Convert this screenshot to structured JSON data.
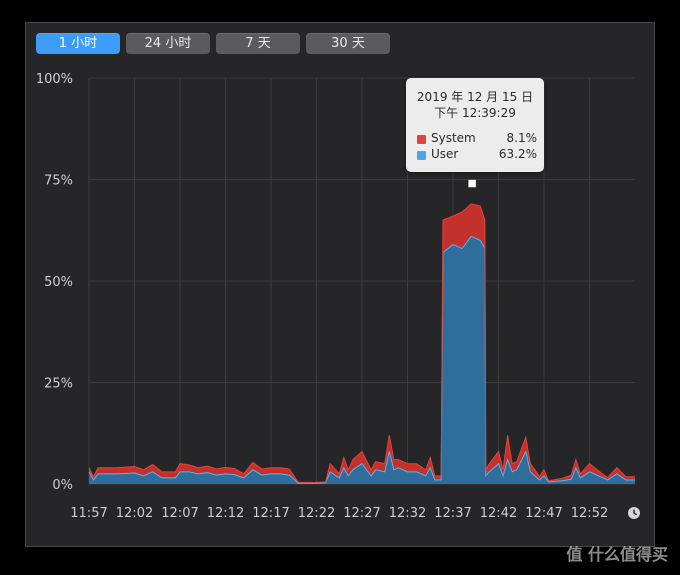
{
  "tabs": [
    {
      "label": "1 小时",
      "active": true
    },
    {
      "label": "24 小时",
      "active": false
    },
    {
      "label": "7 天",
      "active": false
    },
    {
      "label": "30 天",
      "active": false
    }
  ],
  "tooltip": {
    "date": "2019 年 12 月 15 日",
    "time": "下午 12:39:29",
    "rows": [
      {
        "name": "System",
        "value": "8.1%",
        "color": "#e0463c"
      },
      {
        "name": "User",
        "value": "63.2%",
        "color": "#4aa8e8"
      }
    ]
  },
  "clock_icon": "clock-icon",
  "watermark": "值 什么值得买",
  "colors": {
    "system": "#c4302b",
    "user": "#2f6d9a",
    "user_line": "#5fb2ee",
    "active_tab": "#3d9cf5"
  },
  "chart_data": {
    "type": "area",
    "title": "",
    "xlabel": "",
    "ylabel": "",
    "ylim": [
      0,
      100
    ],
    "y_ticks": [
      "100%",
      "75%",
      "50%",
      "25%",
      "0%"
    ],
    "x_ticks": [
      "11:57",
      "12:02",
      "12:07",
      "12:12",
      "12:17",
      "12:22",
      "12:27",
      "12:32",
      "12:37",
      "12:42",
      "12:47",
      "12:52"
    ],
    "x_range_minutes": [
      0,
      60
    ],
    "stacked": true,
    "series": [
      {
        "name": "User",
        "points": [
          [
            0,
            3
          ],
          [
            0.5,
            1
          ],
          [
            1,
            2.5
          ],
          [
            3,
            2.5
          ],
          [
            5,
            2.7
          ],
          [
            6,
            2
          ],
          [
            7,
            3
          ],
          [
            8,
            1.5
          ],
          [
            9.5,
            1.5
          ],
          [
            10,
            3
          ],
          [
            11,
            3
          ],
          [
            12,
            2.5
          ],
          [
            13,
            2.8
          ],
          [
            14,
            2.2
          ],
          [
            15,
            2.5
          ],
          [
            16,
            2.3
          ],
          [
            17,
            1.5
          ],
          [
            18,
            3.5
          ],
          [
            19,
            2.2
          ],
          [
            20,
            2.5
          ],
          [
            21,
            2.5
          ],
          [
            22,
            2.2
          ],
          [
            23,
            0.2
          ],
          [
            24,
            0.2
          ],
          [
            25,
            0.2
          ],
          [
            26,
            0.3
          ],
          [
            26.5,
            3
          ],
          [
            27.5,
            1.5
          ],
          [
            28,
            4
          ],
          [
            28.5,
            2
          ],
          [
            29,
            3.5
          ],
          [
            30,
            5
          ],
          [
            31,
            2
          ],
          [
            31.5,
            3.5
          ],
          [
            32.5,
            3
          ],
          [
            33,
            8
          ],
          [
            33.5,
            3.5
          ],
          [
            34,
            4
          ],
          [
            35,
            3
          ],
          [
            36,
            3
          ],
          [
            37,
            2
          ],
          [
            37.5,
            4
          ],
          [
            38,
            1
          ],
          [
            38.7,
            1
          ],
          [
            38.9,
            57
          ],
          [
            40,
            59
          ],
          [
            41,
            58
          ],
          [
            42,
            61
          ],
          [
            43,
            60
          ],
          [
            43.5,
            58
          ],
          [
            43.6,
            2
          ],
          [
            44,
            3
          ],
          [
            44.5,
            4
          ],
          [
            45,
            5
          ],
          [
            45.5,
            2
          ],
          [
            46,
            6
          ],
          [
            46.5,
            3
          ],
          [
            47,
            3.5
          ],
          [
            48,
            8
          ],
          [
            48.5,
            3
          ],
          [
            49,
            2
          ],
          [
            49.5,
            1
          ],
          [
            50,
            2
          ],
          [
            50.5,
            0.5
          ],
          [
            52,
            0.8
          ],
          [
            53,
            1.2
          ],
          [
            53.5,
            4
          ],
          [
            54,
            1.5
          ],
          [
            55,
            3
          ],
          [
            56,
            2
          ],
          [
            57,
            1
          ],
          [
            58,
            2.5
          ],
          [
            59,
            1
          ],
          [
            60,
            1
          ]
        ]
      },
      {
        "name": "System",
        "points": [
          [
            0,
            1
          ],
          [
            0.5,
            0.8
          ],
          [
            1,
            1.5
          ],
          [
            3,
            1.5
          ],
          [
            5,
            1.6
          ],
          [
            6,
            1.5
          ],
          [
            7,
            1.8
          ],
          [
            8,
            1.5
          ],
          [
            9.5,
            1.5
          ],
          [
            10,
            2
          ],
          [
            11,
            1.7
          ],
          [
            12,
            1.5
          ],
          [
            13,
            1.6
          ],
          [
            14,
            1.5
          ],
          [
            15,
            1.6
          ],
          [
            16,
            1.5
          ],
          [
            17,
            1
          ],
          [
            18,
            1.8
          ],
          [
            19,
            1.5
          ],
          [
            20,
            1.5
          ],
          [
            21,
            1.5
          ],
          [
            22,
            1.5
          ],
          [
            23,
            0.2
          ],
          [
            24,
            0.2
          ],
          [
            25,
            0.2
          ],
          [
            26,
            0.2
          ],
          [
            26.5,
            2
          ],
          [
            27.5,
            1
          ],
          [
            28,
            2.5
          ],
          [
            28.5,
            1.5
          ],
          [
            29,
            2.5
          ],
          [
            30,
            3
          ],
          [
            31,
            1.5
          ],
          [
            31.5,
            2
          ],
          [
            32.5,
            2
          ],
          [
            33,
            4
          ],
          [
            33.5,
            2.5
          ],
          [
            34,
            2
          ],
          [
            35,
            2
          ],
          [
            36,
            2
          ],
          [
            37,
            1.5
          ],
          [
            37.5,
            2.5
          ],
          [
            38,
            1
          ],
          [
            38.7,
            1
          ],
          [
            38.9,
            8
          ],
          [
            40,
            7
          ],
          [
            41,
            9
          ],
          [
            42,
            8
          ],
          [
            43,
            8.5
          ],
          [
            43.5,
            7
          ],
          [
            43.6,
            1.5
          ],
          [
            44,
            2
          ],
          [
            44.5,
            2.5
          ],
          [
            45,
            3
          ],
          [
            45.5,
            1.5
          ],
          [
            46,
            6
          ],
          [
            46.5,
            2
          ],
          [
            47,
            2
          ],
          [
            48,
            3.5
          ],
          [
            48.5,
            2
          ],
          [
            49,
            1.5
          ],
          [
            49.5,
            0.8
          ],
          [
            50,
            1.5
          ],
          [
            50.5,
            0.3
          ],
          [
            52,
            0.6
          ],
          [
            53,
            1
          ],
          [
            53.5,
            2
          ],
          [
            54,
            1
          ],
          [
            55,
            2
          ],
          [
            56,
            1.2
          ],
          [
            57,
            0.6
          ],
          [
            58,
            1.5
          ],
          [
            59,
            0.8
          ],
          [
            60,
            0.8
          ]
        ]
      }
    ],
    "grid": true,
    "hover_marker": {
      "minute": 42.1,
      "value": 71.3
    }
  }
}
